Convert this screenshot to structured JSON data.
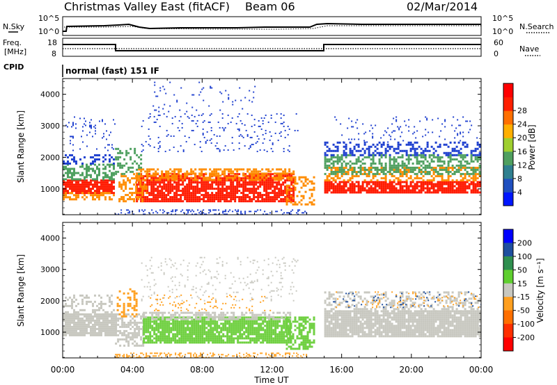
{
  "header": {
    "station": "Christmas Valley East (fitACF)",
    "beam": "Beam 06",
    "date": "02/Mar/2014"
  },
  "sky_panel": {
    "left_label": "N.Sky",
    "right_label": "N.Search",
    "left_ticks": [
      "10^5",
      "10^0"
    ],
    "right_ticks": [
      "10^5",
      "10^0"
    ]
  },
  "freq_panel": {
    "left_label_line1": "Freq.",
    "left_label_line2": "[MHz]",
    "right_label": "Nave",
    "left_ticks": [
      "18",
      "8"
    ],
    "right_ticks": [
      "60",
      "0"
    ]
  },
  "cpid": {
    "label": "CPID",
    "mode": "normal (fast) 151 IF"
  },
  "chart_data": [
    {
      "type": "heatmap",
      "panel": "power",
      "ylabel": "Slant Range [km]",
      "xlabel": "",
      "ylim": [
        180,
        4500
      ],
      "y_ticks": [
        "1000",
        "2000",
        "3000",
        "4000"
      ],
      "x_ticks": [
        "00:00",
        "04:00",
        "08:00",
        "12:00",
        "16:00",
        "20:00",
        "00:00"
      ],
      "colorbar": {
        "label": "Power [dB]",
        "ticks": [
          "4",
          "8",
          "12",
          "16",
          "20",
          "24",
          "28"
        ],
        "colors": [
          "#0016ff",
          "#1f4fbf",
          "#2f7f8f",
          "#4f9f5f",
          "#9fcf2f",
          "#ffaf00",
          "#ff6f00",
          "#ff1f00",
          "#ff0000"
        ]
      }
    },
    {
      "type": "heatmap",
      "panel": "velocity",
      "ylabel": "Slant Range [km]",
      "xlabel": "Time UT",
      "ylim": [
        180,
        4500
      ],
      "y_ticks": [
        "1000",
        "2000",
        "3000",
        "4000"
      ],
      "x_ticks": [
        "00:00",
        "04:00",
        "08:00",
        "12:00",
        "16:00",
        "20:00",
        "00:00"
      ],
      "colorbar": {
        "label": "Velocity [m s⁻¹]",
        "ticks": [
          "200",
          "100",
          "50",
          "15",
          "-15",
          "-50",
          "-100",
          "-200"
        ],
        "colors": [
          "#0000ff",
          "#1f4f9f",
          "#2f8f4f",
          "#5fcf2f",
          "#c8c8c0",
          "#ff9f1f",
          "#ff6f00",
          "#ff2f00",
          "#ff0000"
        ]
      }
    }
  ],
  "colors": {
    "power_red": "#ff1a00",
    "power_orange": "#ff8c00",
    "power_green": "#4fa060",
    "power_blue": "#1d3fcf",
    "vel_grey": "#c8c8c0",
    "vel_green": "#6fd040",
    "vel_orange": "#ffa020"
  }
}
